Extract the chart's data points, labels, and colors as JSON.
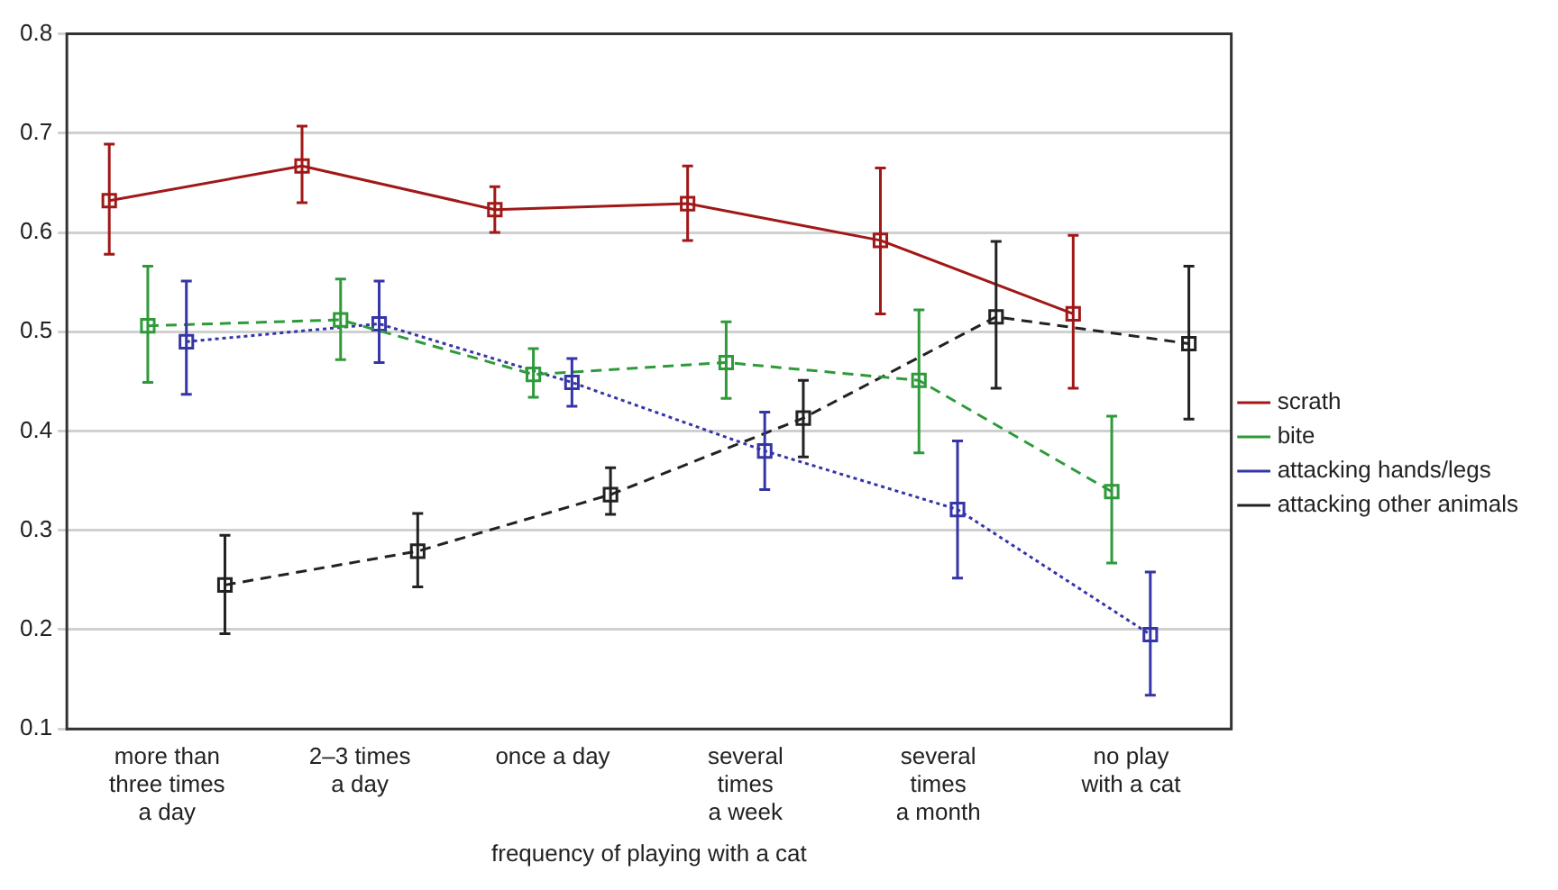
{
  "chart_data": {
    "type": "line",
    "xlabel": "frequency of playing with a cat",
    "categories": [
      "more than\nthree times\na day",
      "2–3 times\na day",
      "once a day",
      "several\ntimes\na week",
      "several\ntimes\na month",
      "no play\nwith a cat"
    ],
    "series": [
      {
        "name": "scrath",
        "color": "#a01818",
        "line_style": "solid",
        "values": [
          0.632,
          0.667,
          0.623,
          0.629,
          0.592,
          0.518
        ],
        "errors": [
          [
            0.578,
            0.689
          ],
          [
            0.63,
            0.707
          ],
          [
            0.6,
            0.646
          ],
          [
            0.592,
            0.667
          ],
          [
            0.518,
            0.665
          ],
          [
            0.443,
            0.597
          ]
        ]
      },
      {
        "name": "bite",
        "color": "#2e9a3a",
        "line_style": "dashed",
        "values": [
          0.506,
          0.512,
          0.457,
          0.469,
          0.451,
          0.339
        ],
        "errors": [
          [
            0.449,
            0.566
          ],
          [
            0.472,
            0.553
          ],
          [
            0.434,
            0.483
          ],
          [
            0.433,
            0.51
          ],
          [
            0.378,
            0.522
          ],
          [
            0.267,
            0.415
          ]
        ]
      },
      {
        "name": "attacking hands/legs",
        "color": "#3535a8",
        "line_style": "dotted",
        "values": [
          0.49,
          0.508,
          0.449,
          0.38,
          0.321,
          0.195
        ],
        "errors": [
          [
            0.437,
            0.551
          ],
          [
            0.469,
            0.551
          ],
          [
            0.425,
            0.473
          ],
          [
            0.341,
            0.419
          ],
          [
            0.252,
            0.39
          ],
          [
            0.134,
            0.258
          ]
        ]
      },
      {
        "name": "attacking other animals",
        "color": "#222222",
        "line_style": "dashed",
        "values": [
          0.245,
          0.279,
          0.336,
          0.413,
          0.515,
          0.488
        ],
        "errors": [
          [
            0.196,
            0.295
          ],
          [
            0.243,
            0.317
          ],
          [
            0.316,
            0.363
          ],
          [
            0.374,
            0.451
          ],
          [
            0.443,
            0.591
          ],
          [
            0.412,
            0.566
          ]
        ]
      }
    ],
    "ylim": [
      0.1,
      0.8
    ],
    "yticks": [
      0.1,
      0.2,
      0.3,
      0.4,
      0.5,
      0.6,
      0.7,
      0.8
    ],
    "grid": "y",
    "legend": "right",
    "marker": "square"
  }
}
